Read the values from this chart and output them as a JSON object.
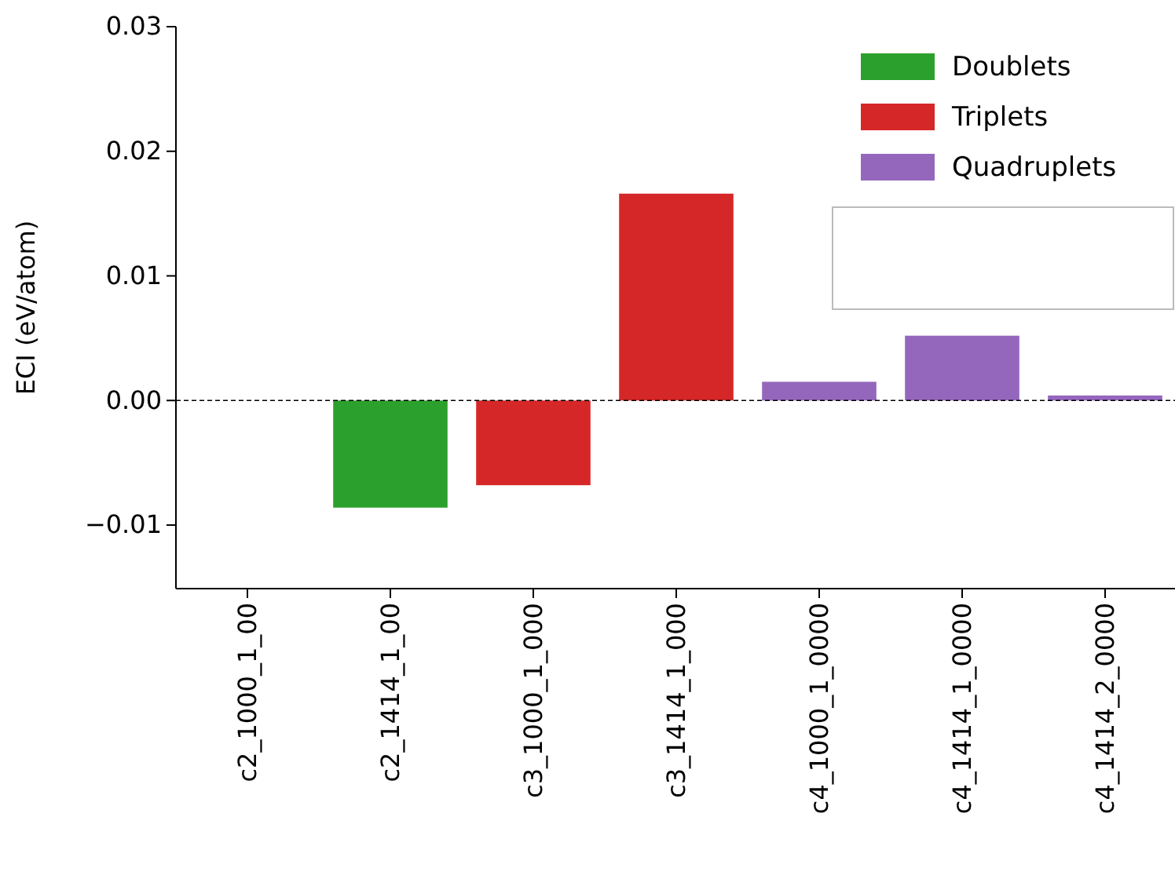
{
  "chart_data": {
    "type": "bar",
    "ylabel": "ECI (eV/atom)",
    "categories": [
      "c2_1000_1_00",
      "c2_1414_1_00",
      "c3_1000_1_000",
      "c3_1414_1_000",
      "c4_1000_1_0000",
      "c4_1414_1_0000",
      "c4_1414_2_0000"
    ],
    "series": [
      {
        "name": "Doublets",
        "color": "#2ca02c",
        "values": [
          0,
          -0.0086,
          null,
          null,
          null,
          null,
          null
        ]
      },
      {
        "name": "Triplets",
        "color": "#d62728",
        "values": [
          null,
          null,
          -0.0068,
          0.0166,
          null,
          null,
          null
        ]
      },
      {
        "name": "Quadruplets",
        "color": "#9467bd",
        "values": [
          null,
          null,
          null,
          null,
          0.0015,
          0.0052,
          0.0004
        ]
      }
    ],
    "ylim": [
      -0.0151,
      0.03
    ],
    "yticks": [
      {
        "value": -0.01,
        "label": "−0.01"
      },
      {
        "value": 0,
        "label": "0.00"
      },
      {
        "value": 0.01,
        "label": "0.01"
      },
      {
        "value": 0.02,
        "label": "0.02"
      },
      {
        "value": 0.03,
        "label": "0.03"
      }
    ],
    "ref_lines": [
      {
        "axis": "y",
        "value": 0,
        "label": null,
        "color": "#000000",
        "line_style": "dashed"
      }
    ],
    "legend": "top right",
    "grid": false
  }
}
